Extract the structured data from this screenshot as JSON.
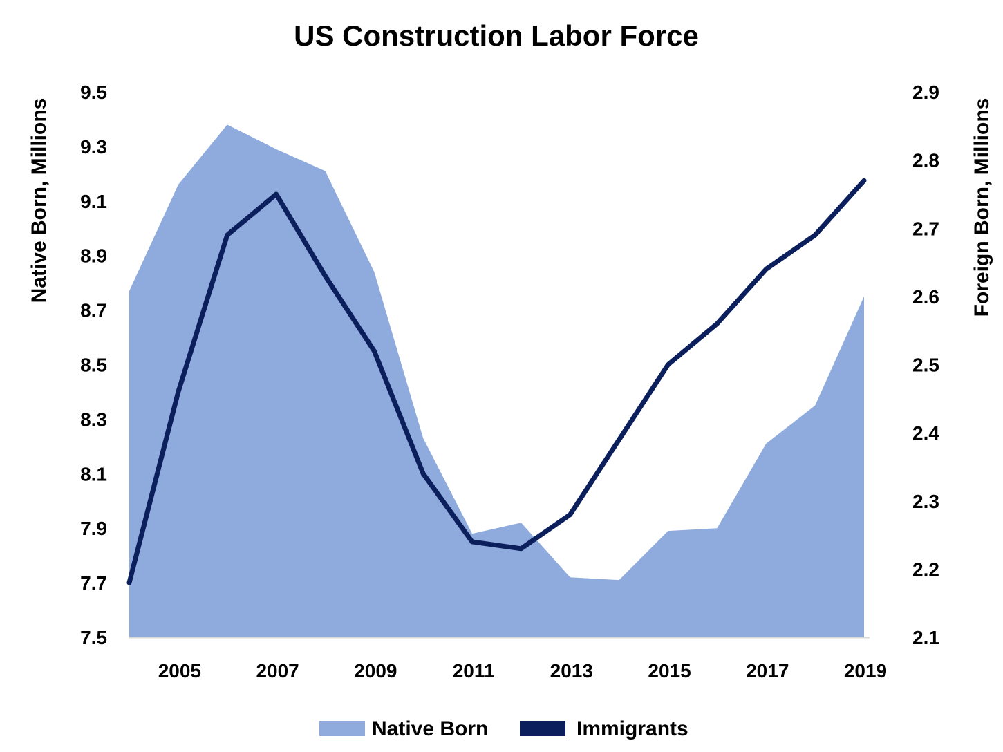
{
  "chart_data": {
    "type": "area+line",
    "title": "US Construction Labor Force",
    "x": [
      2004,
      2005,
      2006,
      2007,
      2008,
      2009,
      2010,
      2011,
      2012,
      2013,
      2014,
      2015,
      2016,
      2017,
      2018,
      2019
    ],
    "x_ticks": [
      "2005",
      "2007",
      "2009",
      "2011",
      "2013",
      "2015",
      "2017",
      "2019"
    ],
    "left_axis": {
      "label": "Native Born, Millions",
      "range": [
        7.5,
        9.5
      ],
      "ticks": [
        "9.5",
        "9.3",
        "9.1",
        "8.9",
        "8.7",
        "8.5",
        "8.3",
        "8.1",
        "7.9",
        "7.7",
        "7.5"
      ]
    },
    "right_axis": {
      "label": "Foreign Born, Millions",
      "range": [
        2.1,
        2.9
      ],
      "ticks": [
        "2.9",
        "2.8",
        "2.7",
        "2.6",
        "2.5",
        "2.4",
        "2.3",
        "2.2",
        "2.1"
      ]
    },
    "series": [
      {
        "name": "Native Born",
        "type": "area",
        "axis": "left",
        "color": "#8faadc",
        "values": [
          8.77,
          9.16,
          9.38,
          9.29,
          9.21,
          8.84,
          8.23,
          7.88,
          7.92,
          7.72,
          7.71,
          7.89,
          7.9,
          8.21,
          8.35,
          8.75
        ]
      },
      {
        "name": "Immigrants",
        "type": "line",
        "axis": "right",
        "color": "#0b1f5c",
        "values": [
          2.18,
          2.46,
          2.69,
          2.75,
          2.63,
          2.52,
          2.34,
          2.24,
          2.23,
          2.28,
          2.39,
          2.5,
          2.56,
          2.64,
          2.69,
          2.77
        ]
      }
    ],
    "legend": {
      "placement": "bottom-center",
      "items": [
        {
          "label": "Native Born",
          "color": "#8faadc"
        },
        {
          "label": "Immigrants",
          "color": "#0b1f5c"
        }
      ]
    },
    "grid": false
  }
}
